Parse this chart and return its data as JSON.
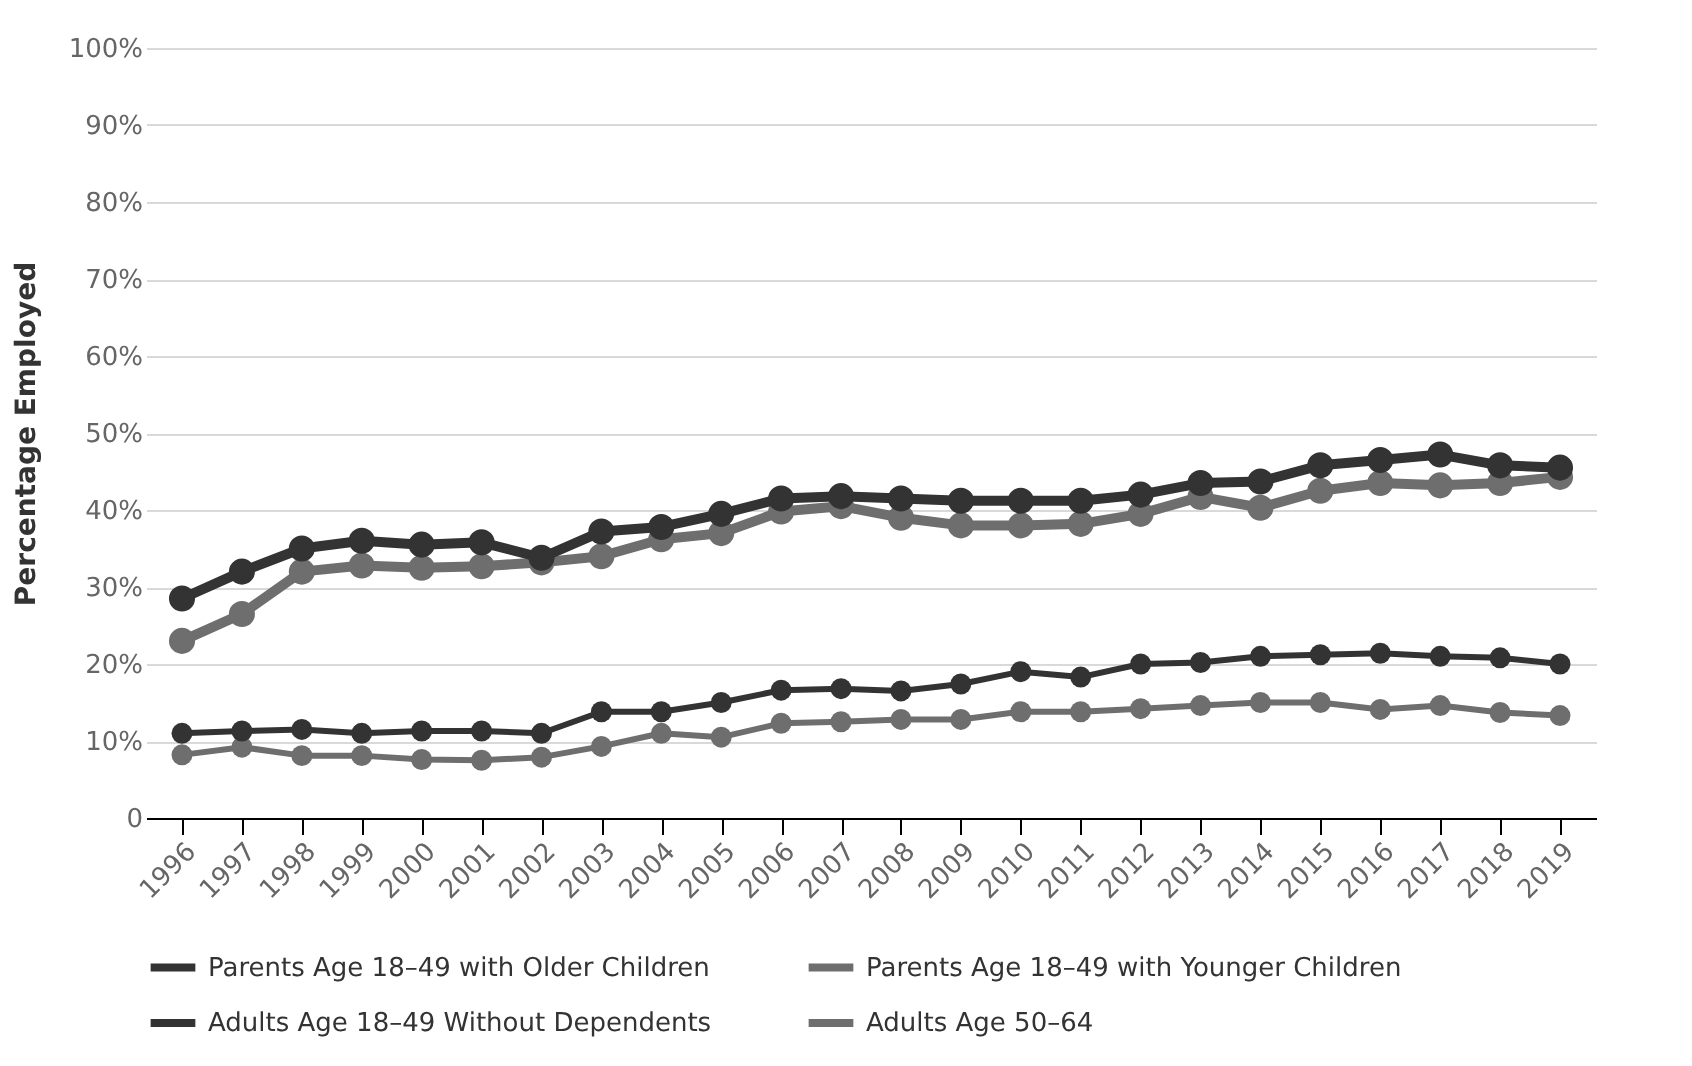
{
  "chart_data": {
    "type": "line",
    "ylabel": "Percentage Employed",
    "categories": [
      "1996",
      "1997",
      "1998",
      "1999",
      "2000",
      "2001",
      "2002",
      "2003",
      "2004",
      "2005",
      "2006",
      "2007",
      "2008",
      "2009",
      "2010",
      "2011",
      "2012",
      "2013",
      "2014",
      "2015",
      "2016",
      "2017",
      "2018",
      "2019"
    ],
    "series": [
      {
        "name": "Parents Age 18–49 with Older Children",
        "color": "#333333",
        "values": [
          28.5,
          32,
          35,
          36,
          35.5,
          35.8,
          33.8,
          37.2,
          37.8,
          39.5,
          41.5,
          41.8,
          41.5,
          41.2,
          41.2,
          41.2,
          42,
          43.5,
          43.7,
          45.8,
          46.5,
          47.2,
          45.8,
          45.5
        ]
      },
      {
        "name": "Parents Age 18–49 with Younger Children",
        "color": "#6e6e6e",
        "values": [
          23,
          26.5,
          32,
          32.8,
          32.5,
          32.7,
          33.2,
          34,
          36.2,
          37,
          39.8,
          40.5,
          39,
          38,
          38,
          38.2,
          39.5,
          41.7,
          40.3,
          42.5,
          43.5,
          43.2,
          43.5,
          44.3
        ]
      },
      {
        "name": "Adults Age 18–49 Without Dependents",
        "color": "#333333",
        "values": [
          11,
          11.3,
          11.5,
          11,
          11.3,
          11.3,
          11,
          13.8,
          13.8,
          15,
          16.6,
          16.8,
          16.5,
          17.4,
          19,
          18.3,
          20,
          20.2,
          21,
          21.2,
          21.4,
          21,
          20.8,
          20
        ]
      },
      {
        "name": "Adults Age 50–64",
        "color": "#6e6e6e",
        "values": [
          8.2,
          9.2,
          8.1,
          8.1,
          7.6,
          7.5,
          7.9,
          9.3,
          11,
          10.5,
          12.3,
          12.5,
          12.8,
          12.8,
          13.8,
          13.8,
          14.2,
          14.6,
          15,
          15,
          14.1,
          14.6,
          13.7,
          13.3
        ]
      }
    ],
    "ylim": [
      0,
      100
    ],
    "yticks": [
      {
        "value": 0,
        "label": "0"
      },
      {
        "value": 10,
        "label": "10%"
      },
      {
        "value": 20,
        "label": "20%"
      },
      {
        "value": 30,
        "label": "30%"
      },
      {
        "value": 40,
        "label": "40%"
      },
      {
        "value": 50,
        "label": "50%"
      },
      {
        "value": 60,
        "label": "60%"
      },
      {
        "value": 70,
        "label": "70%"
      },
      {
        "value": 80,
        "label": "80%"
      },
      {
        "value": 90,
        "label": "90%"
      },
      {
        "value": 100,
        "label": "100%"
      }
    ],
    "grid": "y",
    "legend": "bottom",
    "marker": "circle",
    "line_style": "solid"
  }
}
